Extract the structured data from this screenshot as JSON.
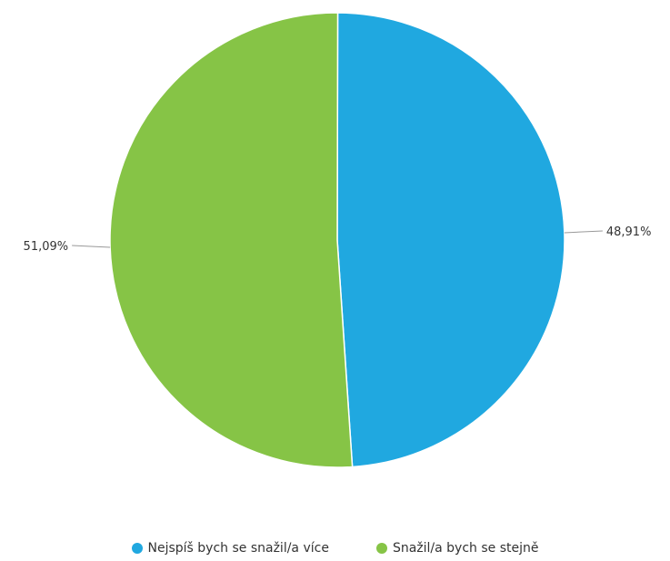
{
  "chart_data": {
    "type": "pie",
    "categories": [
      "Nejspíš bych se snažil/a více",
      "Snažil/a bych se stejně"
    ],
    "values": [
      48.91,
      51.09
    ],
    "labels": [
      "48,91%",
      "51,09%"
    ],
    "colors": [
      "#20a8e0",
      "#86c446"
    ],
    "legend_position": "bottom"
  }
}
